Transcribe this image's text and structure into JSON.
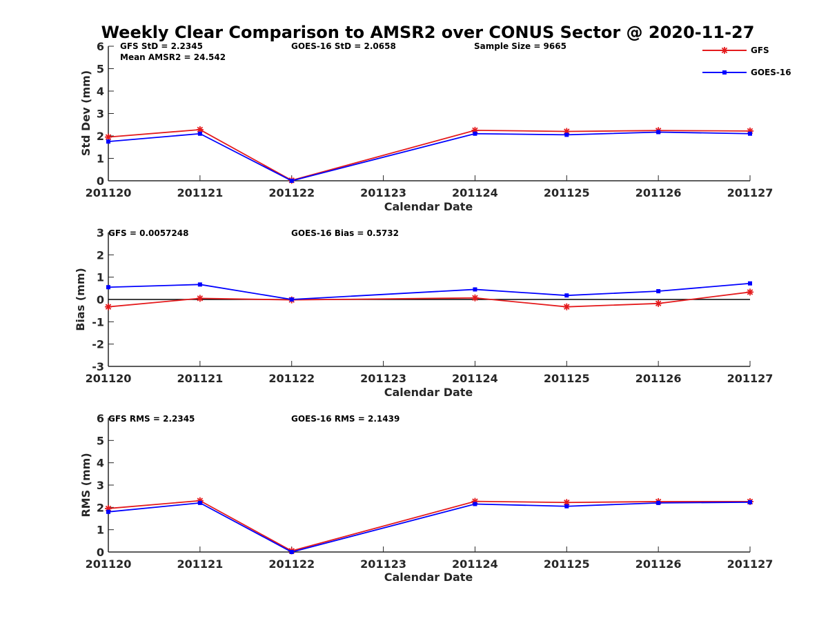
{
  "title": "Weekly Clear Comparison to AMSR2 over CONUS Sector @ 2020-11-27",
  "legend": [
    {
      "label": "GFS",
      "color": "#e41a1c",
      "marker": "asterisk"
    },
    {
      "label": "GOES-16",
      "color": "#0000ff",
      "marker": "square"
    }
  ],
  "chart_data": [
    {
      "type": "line",
      "ylabel": "Std Dev (mm)",
      "xlabel": "Calendar Date",
      "categories": [
        "201120",
        "201121",
        "201122",
        "201123",
        "201124",
        "201125",
        "201126",
        "201127"
      ],
      "ylim": [
        0,
        6
      ],
      "yticks": [
        "0",
        "1",
        "2",
        "3",
        "4",
        "5",
        "6"
      ],
      "annotations": [
        "GFS StD = 2.2345",
        "GOES-16 StD = 2.0658",
        "Sample Size = 9665",
        "Mean AMSR2 = 24.542"
      ],
      "series": [
        {
          "name": "GFS",
          "color": "#e41a1c",
          "x": [
            0,
            1,
            2,
            4,
            5,
            6,
            7
          ],
          "values": [
            1.95,
            2.28,
            0.02,
            2.25,
            2.2,
            2.24,
            2.22
          ]
        },
        {
          "name": "GOES-16",
          "color": "#0000ff",
          "x": [
            0,
            1,
            2,
            4,
            5,
            6,
            7
          ],
          "values": [
            1.75,
            2.1,
            0.0,
            2.1,
            2.05,
            2.17,
            2.1
          ]
        }
      ],
      "zero_line": false
    },
    {
      "type": "line",
      "ylabel": "Bias (mm)",
      "xlabel": "Calendar Date",
      "categories": [
        "201120",
        "201121",
        "201122",
        "201123",
        "201124",
        "201125",
        "201126",
        "201127"
      ],
      "ylim": [
        -3,
        3
      ],
      "yticks": [
        "-3",
        "-2",
        "-1",
        "0",
        "1",
        "2",
        "3"
      ],
      "annotations": [
        "GFS = 0.0057248",
        "GOES-16 Bias  = 0.5732"
      ],
      "series": [
        {
          "name": "GFS",
          "color": "#e41a1c",
          "x": [
            0,
            1,
            2,
            4,
            5,
            6,
            7
          ],
          "values": [
            -0.33,
            0.05,
            -0.02,
            0.07,
            -0.33,
            -0.18,
            0.33
          ]
        },
        {
          "name": "GOES-16",
          "color": "#0000ff",
          "x": [
            0,
            1,
            2,
            4,
            5,
            6,
            7
          ],
          "values": [
            0.55,
            0.67,
            0.0,
            0.45,
            0.18,
            0.37,
            0.72
          ]
        }
      ],
      "zero_line": true
    },
    {
      "type": "line",
      "ylabel": "RMS (mm)",
      "xlabel": "Calendar Date",
      "categories": [
        "201120",
        "201121",
        "201122",
        "201123",
        "201124",
        "201125",
        "201126",
        "201127"
      ],
      "ylim": [
        0,
        6
      ],
      "yticks": [
        "0",
        "1",
        "2",
        "3",
        "4",
        "5",
        "6"
      ],
      "annotations": [
        "GFS RMS = 2.2345",
        "GOES-16 RMS = 2.1439"
      ],
      "series": [
        {
          "name": "GFS",
          "color": "#e41a1c",
          "x": [
            0,
            1,
            2,
            4,
            5,
            6,
            7
          ],
          "values": [
            1.95,
            2.3,
            0.05,
            2.27,
            2.22,
            2.26,
            2.26
          ]
        },
        {
          "name": "GOES-16",
          "color": "#0000ff",
          "x": [
            0,
            1,
            2,
            4,
            5,
            6,
            7
          ],
          "values": [
            1.8,
            2.2,
            0.0,
            2.15,
            2.05,
            2.2,
            2.23
          ]
        }
      ],
      "zero_line": false
    }
  ]
}
